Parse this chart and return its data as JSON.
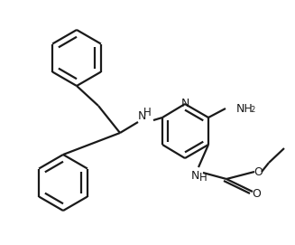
{
  "bg_color": "#ffffff",
  "line_color": "#1a1a1a",
  "line_width": 1.6,
  "figsize": [
    3.23,
    2.67
  ],
  "dpi": 100,
  "font_size": 9
}
